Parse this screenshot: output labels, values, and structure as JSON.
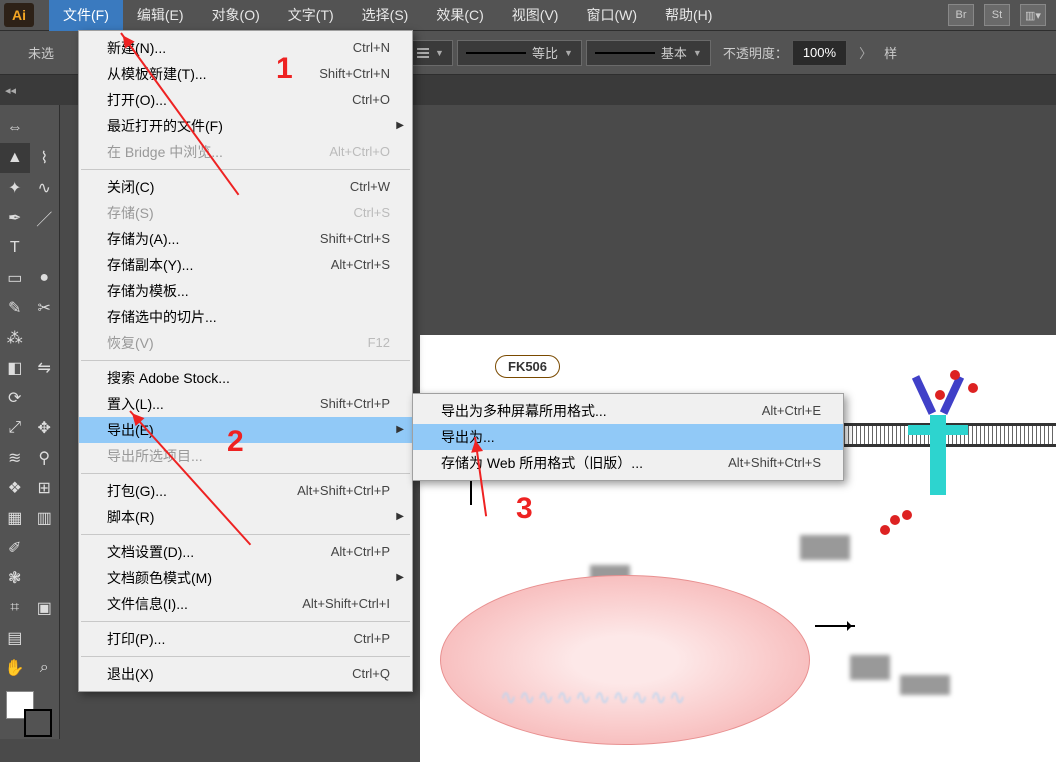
{
  "app": {
    "logo": "Ai"
  },
  "menubar": {
    "items": [
      "文件(F)",
      "编辑(E)",
      "对象(O)",
      "文字(T)",
      "选择(S)",
      "效果(C)",
      "视图(V)",
      "窗口(W)",
      "帮助(H)"
    ],
    "open_index": 0,
    "right_icons": [
      "Br",
      "St"
    ]
  },
  "optbar": {
    "no_selection": "未选",
    "stroke_scale_label": "等比",
    "stroke_style_label": "基本",
    "opacity_label": "不透明度：",
    "opacity_value": "100%",
    "more_label": "样"
  },
  "tab": {
    "close": "×",
    "title_hidden": ""
  },
  "tools": {
    "left": [
      "dbl",
      "sel",
      "wand",
      "pen",
      "type",
      "rect",
      "brush",
      "pencil",
      "erase",
      "rotate",
      "scale",
      "width",
      "shaper",
      "grid",
      "eyedrop",
      "sym",
      "graph",
      "slice",
      "hand"
    ],
    "right": [
      "",
      "lasso",
      "curv",
      "line",
      "",
      "blob",
      "scis",
      "",
      "reflect",
      "",
      "free",
      "pupp",
      "mesh",
      "grad",
      "",
      "",
      "artb",
      "",
      "zoom"
    ]
  },
  "tool_icons": {
    "dbl": "⇔",
    "sel": "▲",
    "wand": "✦",
    "pen": "✒",
    "type": "T",
    "rect": "▭",
    "brush": "✎",
    "pencil": "⁂",
    "erase": "◧",
    "rotate": "⟳",
    "scale": "⤢",
    "width": "≋",
    "shaper": "❖",
    "grid": "▦",
    "eyedrop": "✐",
    "sym": "❃",
    "graph": "⌗",
    "slice": "▤",
    "hand": "✋",
    "lasso": "⌇",
    "curv": "∿",
    "line": "／",
    "blob": "●",
    "scis": "✂",
    "reflect": "⇋",
    "free": "✥",
    "pupp": "⚲",
    "mesh": "⊞",
    "grad": "▥",
    "artb": "▣",
    "zoom": "⌕"
  },
  "file_menu": [
    {
      "label": "新建(N)...",
      "shortcut": "Ctrl+N"
    },
    {
      "label": "从模板新建(T)...",
      "shortcut": "Shift+Ctrl+N"
    },
    {
      "label": "打开(O)...",
      "shortcut": "Ctrl+O"
    },
    {
      "label": "最近打开的文件(F)",
      "submenu": true
    },
    {
      "label": "在 Bridge 中浏览...",
      "shortcut": "Alt+Ctrl+O",
      "disabled": true
    },
    {
      "sep": true
    },
    {
      "label": "关闭(C)",
      "shortcut": "Ctrl+W"
    },
    {
      "label": "存储(S)",
      "shortcut": "Ctrl+S",
      "disabled": true
    },
    {
      "label": "存储为(A)...",
      "shortcut": "Shift+Ctrl+S"
    },
    {
      "label": "存储副本(Y)...",
      "shortcut": "Alt+Ctrl+S"
    },
    {
      "label": "存储为模板..."
    },
    {
      "label": "存储选中的切片..."
    },
    {
      "label": "恢复(V)",
      "shortcut": "F12",
      "disabled": true
    },
    {
      "sep": true
    },
    {
      "label": "搜索 Adobe Stock..."
    },
    {
      "label": "置入(L)...",
      "shortcut": "Shift+Ctrl+P"
    },
    {
      "label": "导出(E)",
      "submenu": true,
      "hl": true
    },
    {
      "label": "导出所选项目...",
      "disabled": true
    },
    {
      "sep": true
    },
    {
      "label": "打包(G)...",
      "shortcut": "Alt+Shift+Ctrl+P"
    },
    {
      "label": "脚本(R)",
      "submenu": true
    },
    {
      "sep": true
    },
    {
      "label": "文档设置(D)...",
      "shortcut": "Alt+Ctrl+P"
    },
    {
      "label": "文档颜色模式(M)",
      "submenu": true
    },
    {
      "label": "文件信息(I)...",
      "shortcut": "Alt+Shift+Ctrl+I"
    },
    {
      "sep": true
    },
    {
      "label": "打印(P)...",
      "shortcut": "Ctrl+P"
    },
    {
      "sep": true
    },
    {
      "label": "退出(X)",
      "shortcut": "Ctrl+Q"
    }
  ],
  "export_submenu": [
    {
      "label": "导出为多种屏幕所用格式...",
      "shortcut": "Alt+Ctrl+E"
    },
    {
      "label": "导出为...",
      "hl": true
    },
    {
      "label": "存储为 Web 所用格式（旧版）...",
      "shortcut": "Alt+Shift+Ctrl+S"
    }
  ],
  "annotations": {
    "n1": "1",
    "n2": "2",
    "n3": "3"
  },
  "artwork": {
    "fk_label": "FK506"
  }
}
